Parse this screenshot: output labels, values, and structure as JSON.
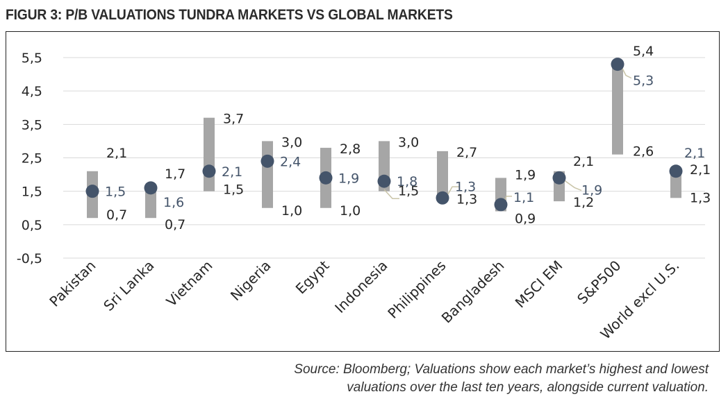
{
  "figure": {
    "title": "FIGUR 3: P/B VALUATIONS TUNDRA MARKETS VS GLOBAL MARKETS",
    "source_line1": "Source: Bloomberg; Valuations show each market’s highest and lowest",
    "source_line2": "valuations over the last ten years, alongside current valuation."
  },
  "chart_data": {
    "type": "bar",
    "subtype": "floating range bar with current value marker",
    "title": "FIGUR 3: P/B VALUATIONS TUNDRA MARKETS VS GLOBAL MARKETS",
    "xlabel": "",
    "ylabel": "",
    "ylim": [
      -0.5,
      5.5
    ],
    "yticks": [
      -0.5,
      0.5,
      1.5,
      2.5,
      3.5,
      4.5,
      5.5
    ],
    "ytick_labels": [
      "-0,5",
      "0,5",
      "1,5",
      "2,5",
      "3,5",
      "4,5",
      "5,5"
    ],
    "grid": "horizontal",
    "legend": "none",
    "categories": [
      "Pakistan",
      "Sri Lanka",
      "Vietnam",
      "Nigeria",
      "Egypt",
      "Indonesia",
      "Philippines",
      "Bangladesh",
      "MSCI EM",
      "S&P500",
      "World excl U.S."
    ],
    "series": [
      {
        "values": [
          2.1,
          1.7,
          3.7,
          3.0,
          2.8,
          3.0,
          2.7,
          1.9,
          2.1,
          5.4,
          2.1
        ],
        "labels": [
          "2,1",
          "1,7",
          "3,7",
          "3,0",
          "2,8",
          "3,0",
          "2,7",
          "1,9",
          "2,1",
          "5,4",
          "2,1"
        ]
      },
      {
        "values": [
          0.7,
          0.7,
          1.5,
          1.0,
          1.0,
          1.5,
          1.3,
          0.9,
          1.2,
          2.6,
          1.3
        ],
        "labels": [
          "0,7",
          "0,7",
          "1,5",
          "1,0",
          "1,0",
          "1,5",
          "1,3",
          "0,9",
          "1,2",
          "2,6",
          "1,3"
        ]
      },
      {
        "values": [
          1.5,
          1.6,
          2.1,
          2.4,
          1.9,
          1.8,
          1.3,
          1.1,
          1.9,
          5.3,
          2.1
        ],
        "labels": [
          "1,5",
          "1,6",
          "2,1",
          "2,4",
          "1,9",
          "1,8",
          "1,3",
          "1,1",
          "1,9",
          "5,3",
          "2,1"
        ]
      }
    ],
    "colors": {
      "range_bar": "#a6a6a6",
      "marker": "#44546a",
      "current_label": "#44546a",
      "high_low_label": "#262626",
      "grid": "#d9d9d9",
      "leader_line": "#c9c4a8"
    }
  }
}
